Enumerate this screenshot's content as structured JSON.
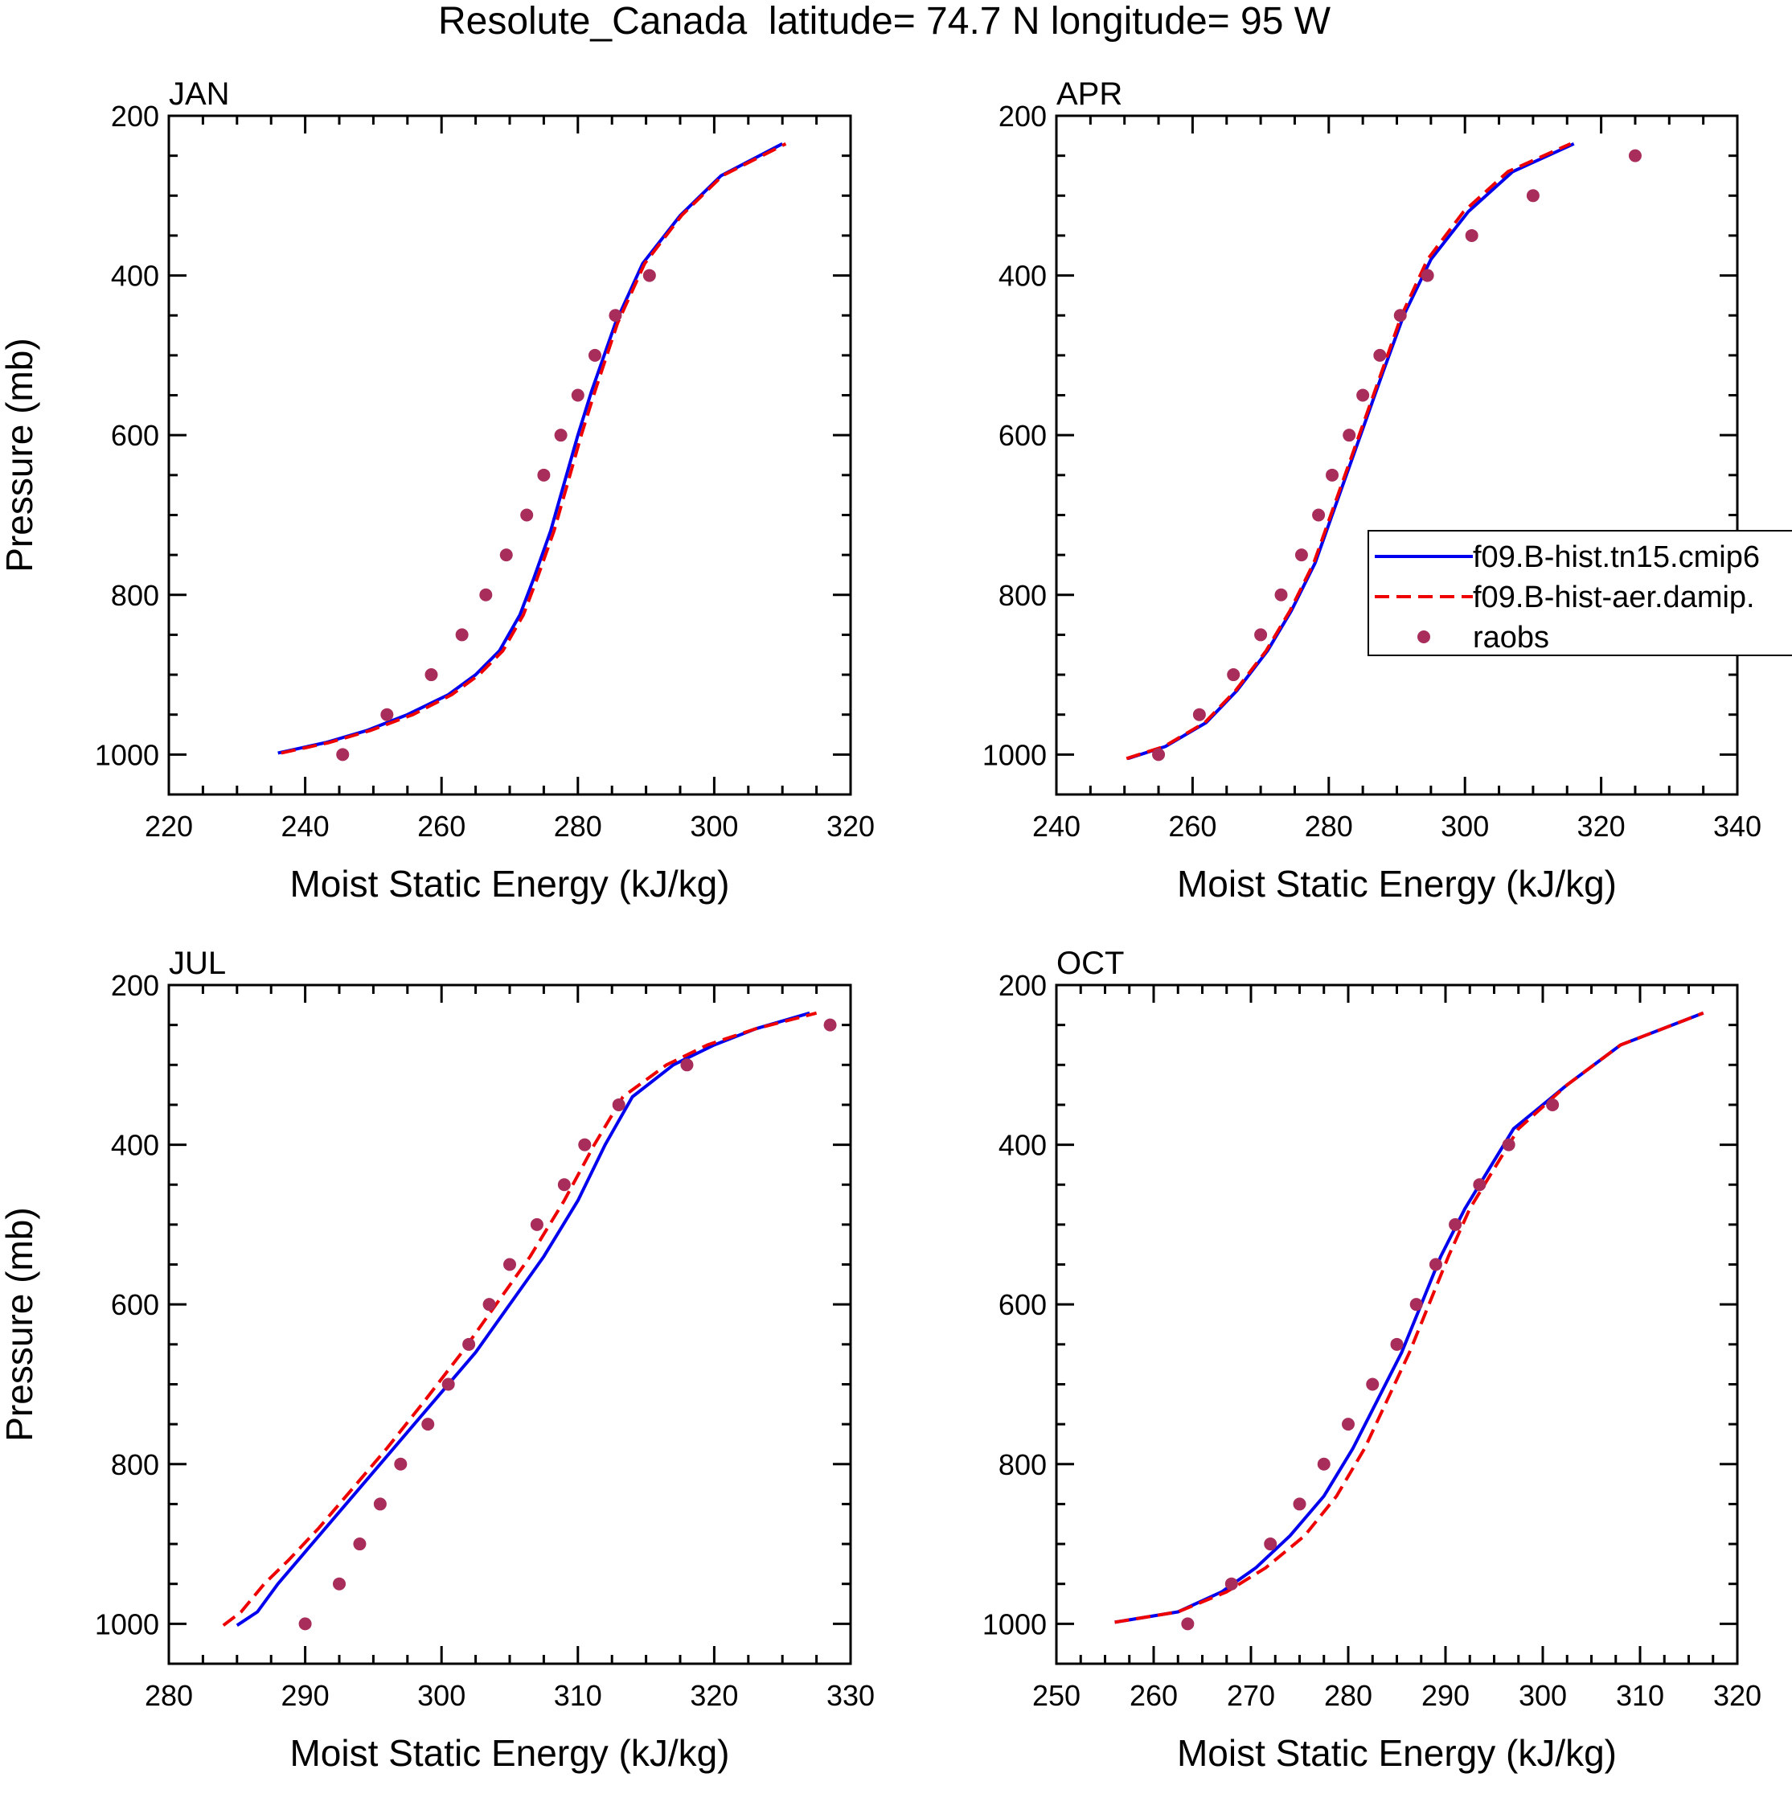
{
  "title": "Resolute_Canada  latitude= 74.7 N longitude= 95 W",
  "colors": {
    "model1": "#0000ee",
    "model2": "#ee0000",
    "obs": "#a82d5a",
    "axis": "#000000"
  },
  "legend": {
    "placement": "right-middle of APR panel",
    "entries": [
      {
        "label": "f09.B-hist.tn15.cmip6",
        "style": "solid",
        "color": "#0000ee"
      },
      {
        "label": "f09.B-hist-aer.damip.",
        "style": "dashed",
        "color": "#ee0000"
      },
      {
        "label": "raobs",
        "style": "marker",
        "color": "#a82d5a"
      }
    ]
  },
  "chart_data": [
    {
      "type": "line",
      "panel": "JAN",
      "xlabel": "Moist Static Energy (kJ/kg)",
      "ylabel": "Pressure (mb)",
      "xlim": [
        220,
        320
      ],
      "ylim": [
        1050,
        200
      ],
      "xticks": [
        220,
        240,
        260,
        280,
        300,
        320
      ],
      "yticks": [
        200,
        400,
        600,
        800,
        1000
      ],
      "series": [
        {
          "name": "f09.B-hist.tn15.cmip6",
          "pressure": [
            998,
            985,
            970,
            950,
            925,
            900,
            870,
            825,
            780,
            720,
            660,
            600,
            545,
            460,
            385,
            325,
            275,
            235
          ],
          "mse": [
            236,
            243,
            249,
            255,
            261,
            265,
            268.5,
            271.5,
            273.5,
            276,
            278,
            280,
            282,
            285.5,
            289.5,
            295,
            301,
            310
          ]
        },
        {
          "name": "f09.B-hist-aer.damip.",
          "pressure": [
            998,
            985,
            970,
            950,
            925,
            900,
            870,
            825,
            780,
            720,
            660,
            600,
            545,
            460,
            385,
            325,
            275,
            235
          ],
          "mse": [
            236.5,
            243.5,
            249.5,
            255.8,
            261.5,
            265.5,
            269,
            272,
            274,
            276.5,
            278.5,
            280.5,
            282.5,
            285.8,
            289.8,
            295.2,
            301.2,
            310.5
          ]
        },
        {
          "name": "raobs",
          "pressure": [
            1000,
            950,
            900,
            850,
            800,
            750,
            700,
            650,
            600,
            550,
            500,
            450,
            400
          ],
          "mse": [
            245.5,
            252,
            258.5,
            263,
            266.5,
            269.5,
            272.5,
            275,
            277.5,
            280,
            282.5,
            285.5,
            290.5
          ]
        }
      ]
    },
    {
      "type": "line",
      "panel": "APR",
      "xlabel": "Moist Static Energy (kJ/kg)",
      "ylabel": "",
      "xlim": [
        240,
        340
      ],
      "ylim": [
        1050,
        200
      ],
      "xticks": [
        240,
        260,
        280,
        300,
        320,
        340
      ],
      "yticks": [
        200,
        400,
        600,
        800,
        1000
      ],
      "series": [
        {
          "name": "f09.B-hist.tn15.cmip6",
          "pressure": [
            1005,
            990,
            960,
            920,
            870,
            820,
            760,
            700,
            640,
            580,
            520,
            450,
            380,
            320,
            270,
            235
          ],
          "mse": [
            250.5,
            256,
            262,
            266.5,
            271,
            274.5,
            278,
            280.5,
            283,
            285.5,
            288,
            291,
            295,
            300.5,
            307,
            316
          ]
        },
        {
          "name": "f09.B-hist-aer.damip.",
          "pressure": [
            1005,
            990,
            960,
            920,
            870,
            820,
            760,
            700,
            640,
            580,
            520,
            450,
            380,
            320,
            270,
            235
          ],
          "mse": [
            250.3,
            255.8,
            261.8,
            266.3,
            270.8,
            274.3,
            277.8,
            280.3,
            282.8,
            285.3,
            287.8,
            290.7,
            294.5,
            299.8,
            306.3,
            315.5
          ]
        },
        {
          "name": "raobs",
          "pressure": [
            1000,
            950,
            900,
            850,
            800,
            750,
            700,
            650,
            600,
            550,
            500,
            450,
            400,
            350,
            300,
            250
          ],
          "mse": [
            255,
            261,
            266,
            270,
            273,
            276,
            278.5,
            280.5,
            283,
            285,
            287.5,
            290.5,
            294.5,
            301,
            310,
            325
          ]
        }
      ]
    },
    {
      "type": "line",
      "panel": "JUL",
      "xlabel": "Moist Static Energy (kJ/kg)",
      "ylabel": "Pressure (mb)",
      "xlim": [
        280,
        330
      ],
      "ylim": [
        1050,
        200
      ],
      "xticks": [
        280,
        290,
        300,
        310,
        320,
        330
      ],
      "yticks": [
        200,
        400,
        600,
        800,
        1000
      ],
      "series": [
        {
          "name": "f09.B-hist.tn15.cmip6",
          "pressure": [
            1002,
            985,
            950,
            920,
            880,
            830,
            780,
            720,
            660,
            600,
            540,
            470,
            400,
            340,
            300,
            275,
            255,
            235
          ],
          "mse": [
            285,
            286.5,
            288,
            289.5,
            291.5,
            294,
            296.5,
            299.5,
            302.5,
            305,
            307.5,
            310,
            312,
            314,
            317,
            320,
            323,
            327
          ]
        },
        {
          "name": "f09.B-hist-aer.damip.",
          "pressure": [
            1002,
            985,
            950,
            920,
            880,
            830,
            780,
            720,
            660,
            600,
            540,
            470,
            400,
            340,
            300,
            275,
            255,
            235
          ],
          "mse": [
            284,
            285.3,
            287,
            288.8,
            291,
            293.5,
            296,
            298.8,
            301.5,
            304,
            306.5,
            309,
            311.2,
            313.3,
            316.5,
            319.5,
            323,
            327.5
          ]
        },
        {
          "name": "raobs",
          "pressure": [
            1000,
            950,
            900,
            850,
            800,
            750,
            700,
            650,
            600,
            550,
            500,
            450,
            400,
            350,
            300,
            250
          ],
          "mse": [
            290,
            292.5,
            294,
            295.5,
            297,
            299,
            300.5,
            302,
            303.5,
            305,
            307,
            309,
            310.5,
            313,
            318,
            328.5
          ]
        }
      ]
    },
    {
      "type": "line",
      "panel": "OCT",
      "xlabel": "Moist Static Energy (kJ/kg)",
      "ylabel": "",
      "xlim": [
        250,
        320
      ],
      "ylim": [
        1050,
        200
      ],
      "xticks": [
        250,
        260,
        270,
        280,
        290,
        300,
        310,
        320
      ],
      "yticks": [
        200,
        400,
        600,
        800,
        1000
      ],
      "series": [
        {
          "name": "f09.B-hist.tn15.cmip6",
          "pressure": [
            998,
            985,
            960,
            930,
            890,
            840,
            780,
            720,
            660,
            600,
            540,
            480,
            430,
            380,
            325,
            275,
            235
          ],
          "mse": [
            256,
            262.5,
            267,
            270.5,
            274,
            277.5,
            280.5,
            283,
            285.5,
            287.5,
            289.5,
            292,
            294.5,
            297,
            302.5,
            308,
            316.5
          ]
        },
        {
          "name": "f09.B-hist-aer.damip.",
          "pressure": [
            998,
            985,
            960,
            930,
            890,
            840,
            780,
            720,
            660,
            600,
            540,
            480,
            430,
            380,
            325,
            275,
            235
          ],
          "mse": [
            256,
            262.5,
            267.5,
            271.5,
            275.5,
            278.8,
            281.7,
            284,
            286.3,
            288.3,
            290.3,
            292.5,
            295,
            297.5,
            302.5,
            308,
            316.5
          ]
        },
        {
          "name": "raobs",
          "pressure": [
            1000,
            950,
            900,
            850,
            800,
            750,
            700,
            650,
            600,
            550,
            500,
            450,
            400,
            350
          ],
          "mse": [
            263.5,
            268,
            272,
            275,
            277.5,
            280,
            282.5,
            285,
            287,
            289,
            291,
            293.5,
            296.5,
            301
          ]
        }
      ]
    }
  ]
}
